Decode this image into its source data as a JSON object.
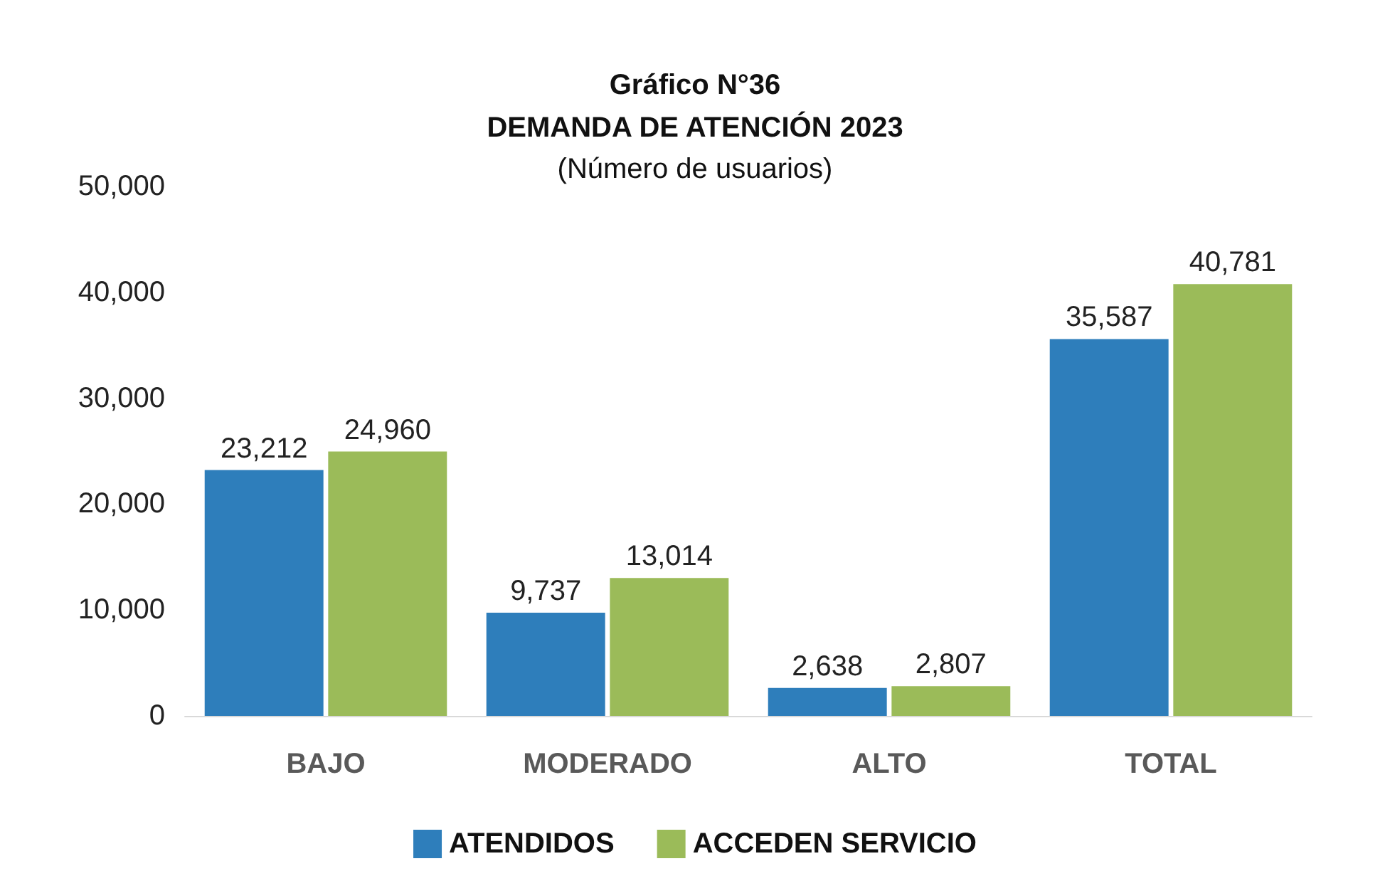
{
  "chart_data": {
    "type": "bar",
    "title": "Gráfico N°36\nDEMANDA DE ATENCIÓN 2023",
    "subtitle": "(Número de usuarios)",
    "categories": [
      "BAJO",
      "MODERADO",
      "ALTO",
      "TOTAL"
    ],
    "series": [
      {
        "name": "ATENDIDOS",
        "color": "#2e7ebb",
        "values": [
          23212,
          9737,
          2638,
          35587
        ],
        "value_labels": [
          "23,212",
          "9,737",
          "2,638",
          "35,587"
        ]
      },
      {
        "name": "ACCEDEN SERVICIO",
        "color": "#9bbb59",
        "values": [
          24960,
          13014,
          2807,
          40781
        ],
        "value_labels": [
          "24,960",
          "13,014",
          "2,807",
          "40,781"
        ]
      }
    ],
    "ylim": [
      0,
      50000
    ],
    "yticks": [
      0,
      {
        "value": 10000,
        "label": "10,000"
      },
      {
        "value": 20000,
        "label": "20,000"
      },
      {
        "value": 30000,
        "label": "30,000"
      },
      {
        "value": 40000,
        "label": "40,000"
      },
      {
        "value": 50000,
        "label": "50,000"
      }
    ],
    "grid": false,
    "legend": "bottom"
  }
}
